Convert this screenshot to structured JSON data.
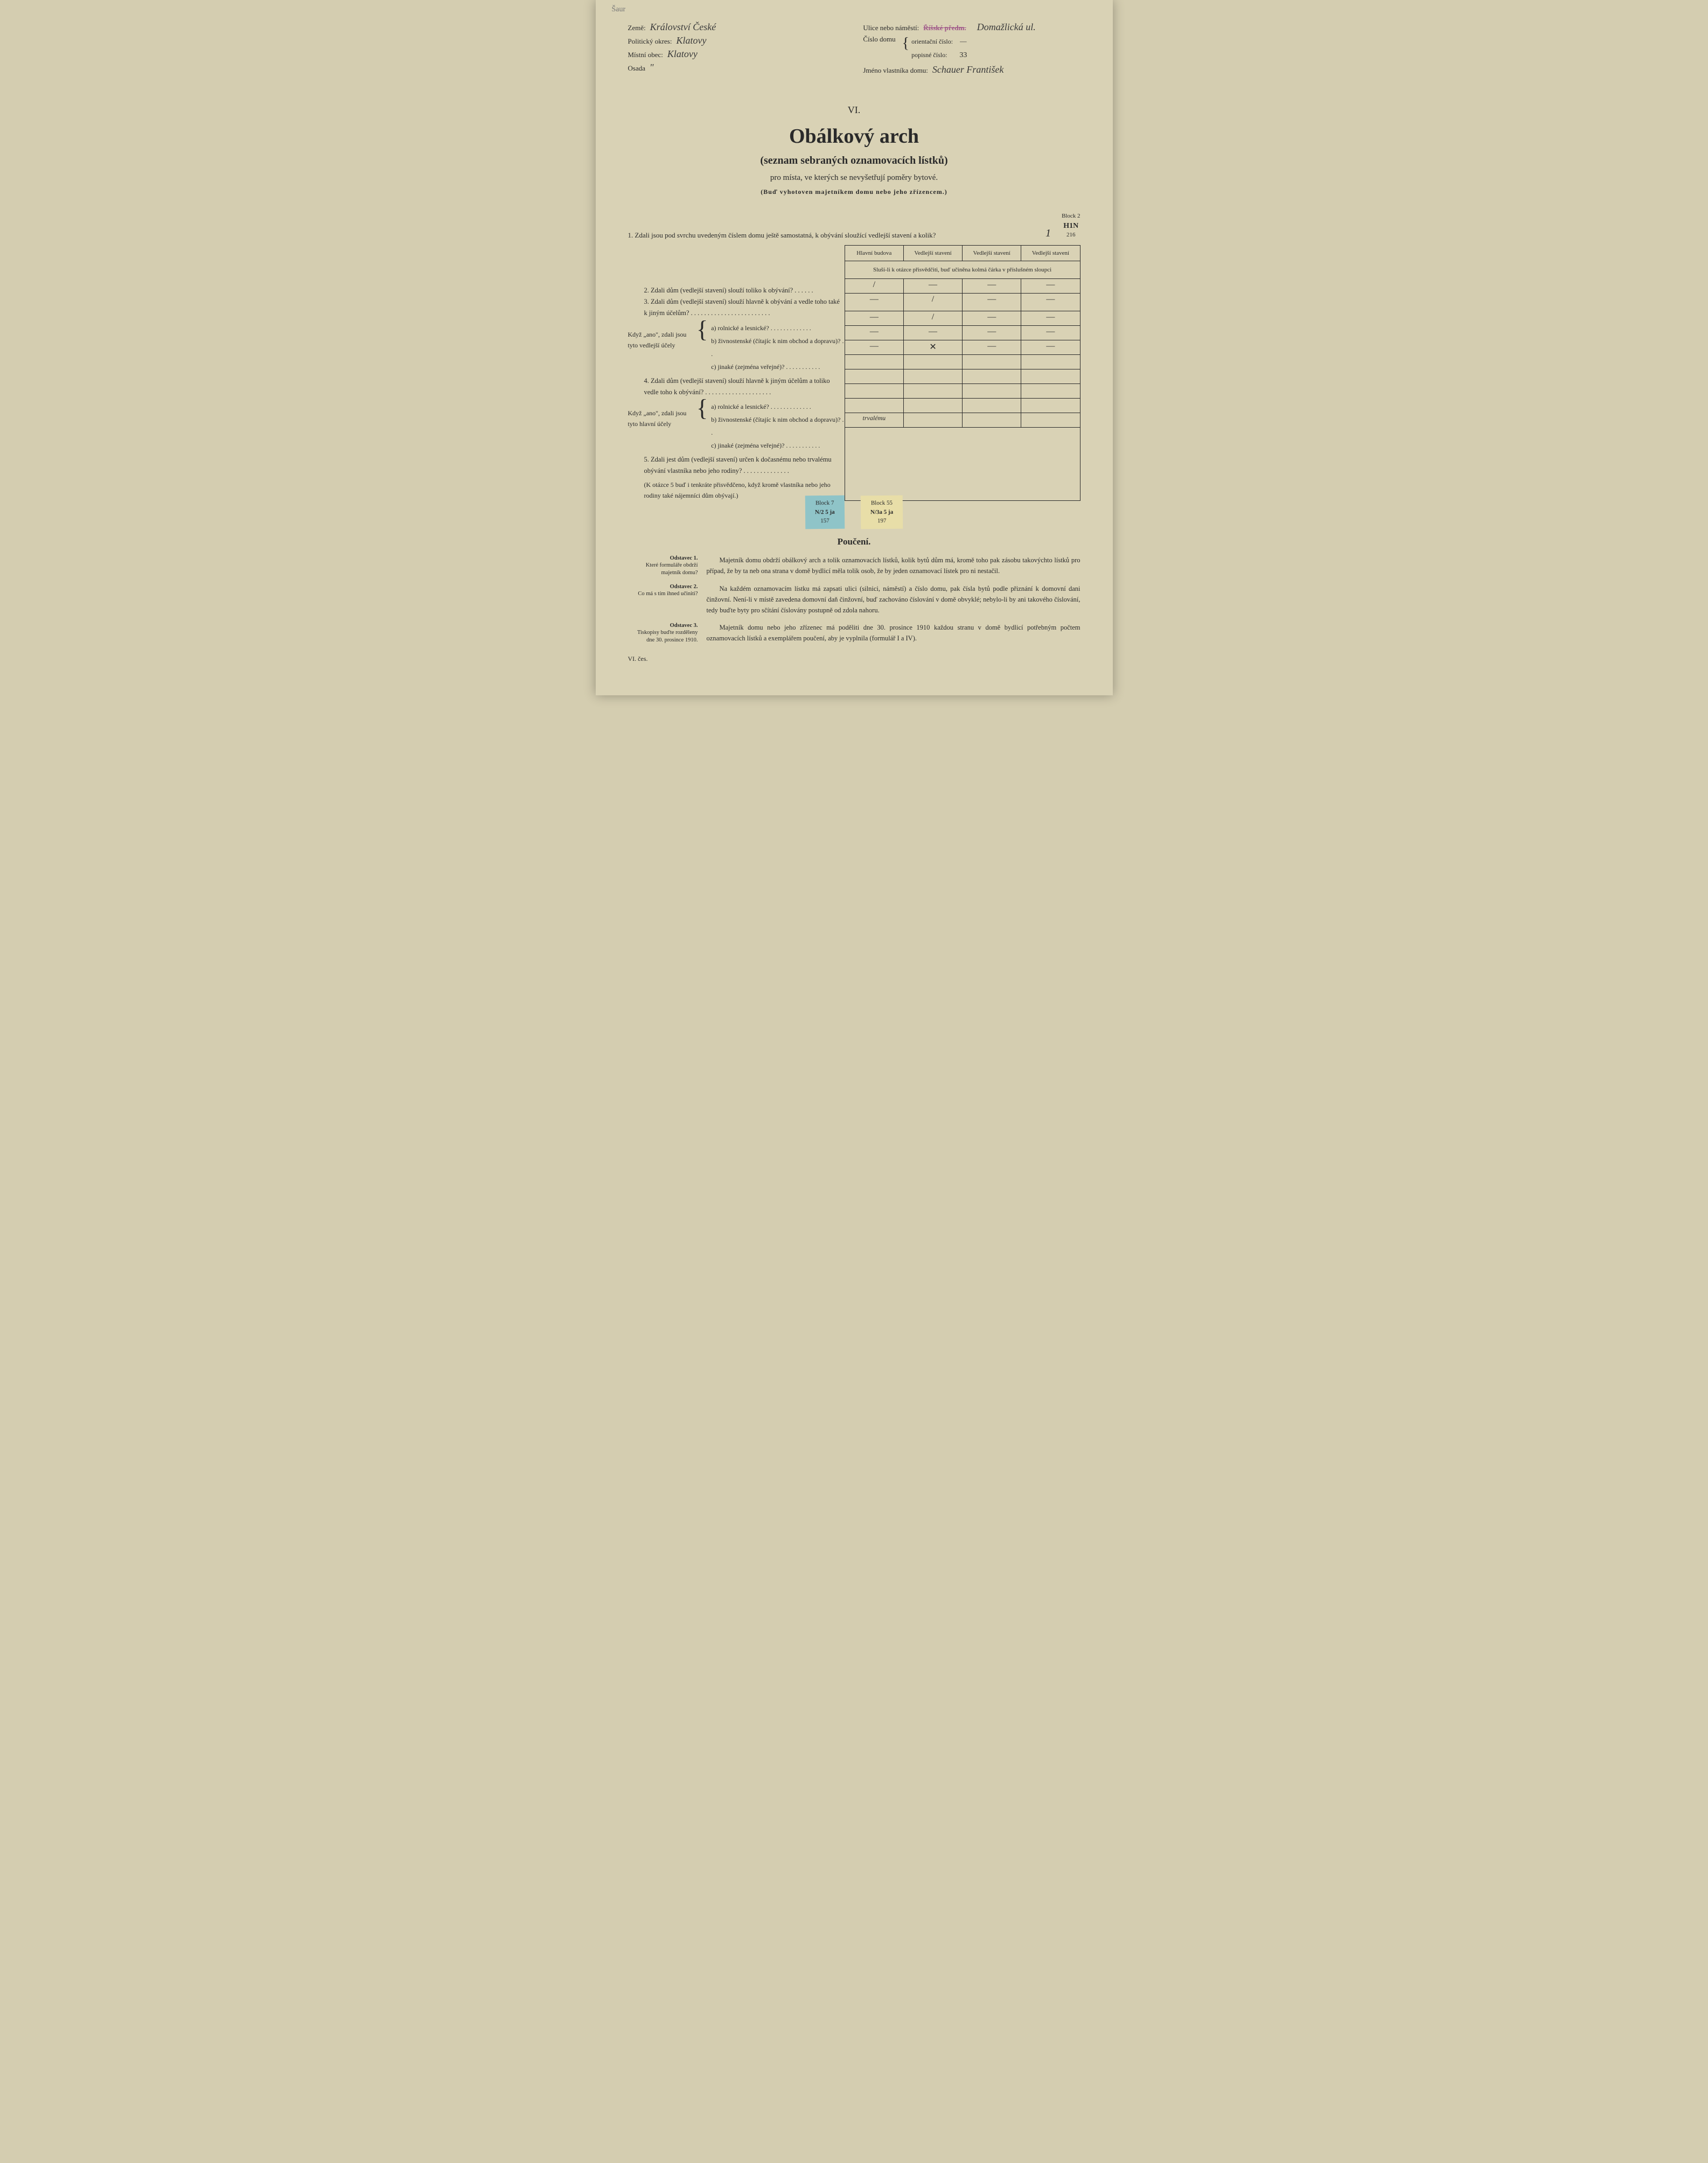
{
  "annotations": {
    "topleft": "Šaur"
  },
  "header": {
    "left": {
      "zeme_label": "Země:",
      "zeme_value": "Království České",
      "okres_label": "Politický okres:",
      "okres_value": "Klatovy",
      "obec_label": "Místní obec:",
      "obec_value": "Klatovy",
      "osada_label": "Osada",
      "osada_value": "\""
    },
    "right": {
      "ulice_label": "Ulice nebo náměstí:",
      "ulice_stamp": "Říšské předm.",
      "ulice_value": "Domažlická ul.",
      "cislo_label": "Číslo domu",
      "orient_label": "orientační číslo:",
      "orient_value": "—",
      "popisne_label": "popisné číslo:",
      "popisne_value": "33",
      "vlastnik_label": "Jméno vlastníka domu:",
      "vlastnik_value": "Schauer František"
    }
  },
  "title": {
    "num": "VI.",
    "main": "Obálkový arch",
    "sub1": "(seznam sebraných oznamovacích lístků)",
    "sub2": "pro místa, ve kterých se nevyšetřují poměry bytové.",
    "sub3": "(Buď vyhotoven majetníkem domu nebo jeho zřízencem.)"
  },
  "block2": {
    "label": "Block 2",
    "code": "H1N",
    "num": "216"
  },
  "questions": {
    "q1": "1. Zdali jsou pod svrchu uvedeným číslem domu ještě samostatná, k obývání sloužící vedlejší stavení a kolik?",
    "q1_ans": "1",
    "q2": "2. Zdali dům (vedlejší stavení) slouží toliko k obývání? . . . . . .",
    "q3": "3. Zdali dům (vedlejší stavení) slouží hlavně k obývání a vedle toho také k jiným účelům? . . . . . . . . . . . . . . . . . . . . . . . .",
    "sub1_label": "Když „ano\", zdali jsou tyto vedlejší účely",
    "sub1_a": "a) rolnické a lesnické? . . . . . . . . . . . . .",
    "sub1_b": "b) živnostenské (čítajíc k nim obchod a dopravu)? . .",
    "sub1_c": "c) jinaké (zejména veřejné)? . . . . . . . . . . .",
    "q4": "4. Zdali dům (vedlejší stavení) slouží hlavně k jiným účelům a toliko vedle toho k obývání? . . . . . . . . . . . . . . . . . . . .",
    "sub2_label": "Když „ano\", zdali jsou tyto hlavní účely",
    "sub2_a": "a) rolnické a lesnické? . . . . . . . . . . . . .",
    "sub2_b": "b) živnostenské (čítajíc k nim obchod a dopravu)? . .",
    "sub2_c": "c) jinaké (zejména veřejné)? . . . . . . . . . . .",
    "q5": "5. Zdali jest dům (vedlejší stavení) určen k dočasnému nebo trvalému obývání vlastníka nebo jeho rodiny? . . . . . . . . . . . . . .",
    "q5_note": "(K otázce 5 buď i tenkráte přisvědčeno, když kromě vlastníka nebo jeho rodiny také nájemníci dům obývají.)"
  },
  "grid": {
    "headers": [
      "Hlavní budova",
      "Vedlejší stavení",
      "Vedlejší stavení",
      "Vedlejší stavení"
    ],
    "note": "Sluší-li k otázce přisvědčiti, buď učiněna kolmá čárka v příslušném sloupci",
    "rows": [
      [
        "/",
        "—",
        "—",
        "—"
      ],
      [
        "—",
        "/",
        "—",
        "—"
      ],
      [
        "—",
        "/",
        "—",
        "—"
      ],
      [
        "—",
        "—",
        "—",
        "—"
      ],
      [
        "—",
        "✕",
        "—",
        "—"
      ],
      [
        "",
        "",
        "",
        ""
      ],
      [
        "",
        "",
        "",
        ""
      ],
      [
        "",
        "",
        "",
        ""
      ],
      [
        "",
        "",
        "",
        ""
      ],
      [
        "trvalému",
        "",
        "",
        ""
      ]
    ]
  },
  "stickers": {
    "blue": {
      "block": "Block 7",
      "frac": "N/2",
      "code": "5 ja",
      "num": "157"
    },
    "yellow": {
      "block": "Block 55",
      "frac": "N/3a",
      "code": "5 ja",
      "num": "197"
    }
  },
  "pouceni": {
    "title": "Poučení.",
    "p1_side_b": "Odstavec 1.",
    "p1_side": "Které formuláře obdrží majetník domu?",
    "p1_text": "Majetník domu obdrží obálkový arch a tolik oznamovacích lístků, kolik bytů dům má, kromě toho pak zásobu takovýchto lístků pro případ, že by ta neb ona strana v domě bydlicí měla tolik osob, že by jeden oznamovací lístek pro ni nestačil.",
    "p2_side_b": "Odstavec 2.",
    "p2_side": "Co má s tím ihned učiniti?",
    "p2_text": "Na každém oznamovacím lístku má zapsati ulici (silnici, náměstí) a číslo domu, pak čísla bytů podle přiznání k domovní dani činžovní. Není-li v místě zavedena domovní daň činžovní, buď zachováno číslování v domě obvyklé; nebylo-li by ani takového číslování, tedy buďte byty pro sčítání číslovány postupně od zdola nahoru.",
    "p3_side_b": "Odstavec 3.",
    "p3_side": "Tiskopisy buďte rozděleny dne 30. prosince 1910.",
    "p3_text": "Majetník domu nebo jeho zřízenec má poděliti dne 30. prosince 1910 každou stranu v domě bydlicí potřebným počtem oznamovacích lístků a exemplářem poučení, aby je vyplnila (formulář I a IV)."
  },
  "footer": "VI. čes."
}
